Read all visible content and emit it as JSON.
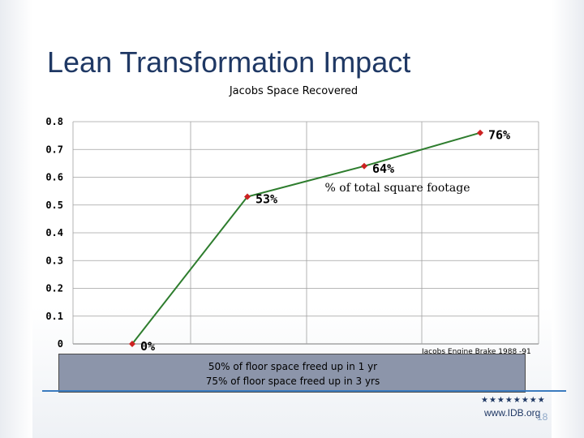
{
  "slide": {
    "title": "Lean Transformation Impact",
    "footer_stars": "★★★★★★★★",
    "footer_site": "www.IDB.org",
    "page_number": "18",
    "caption_lines": [
      "50% of floor space freed up in 1 yr",
      "75% of floor space freed up in 3 yrs"
    ]
  },
  "colors": {
    "title": "#1f3864",
    "line": "#2e7d2e",
    "marker": "#cc2222",
    "caption_bg": "#8c95aa",
    "accent_line": "#3b7bbf"
  },
  "chart_data": {
    "type": "line",
    "title": "Jacobs Space Recovered",
    "annotation": "% of total square footage",
    "source": "Jacobs Engine Brake 1988 -91",
    "ylim": [
      0,
      0.8
    ],
    "yticks": [
      "0",
      "0.1",
      "0.2",
      "0.3",
      "0.4",
      "0.5",
      "0.6",
      "0.7",
      "0.8"
    ],
    "grid": true,
    "series": [
      {
        "values": [
          0,
          0.53,
          0.64,
          0.76
        ],
        "labels": [
          "0%",
          "53%",
          "64%",
          "76%"
        ]
      }
    ]
  }
}
